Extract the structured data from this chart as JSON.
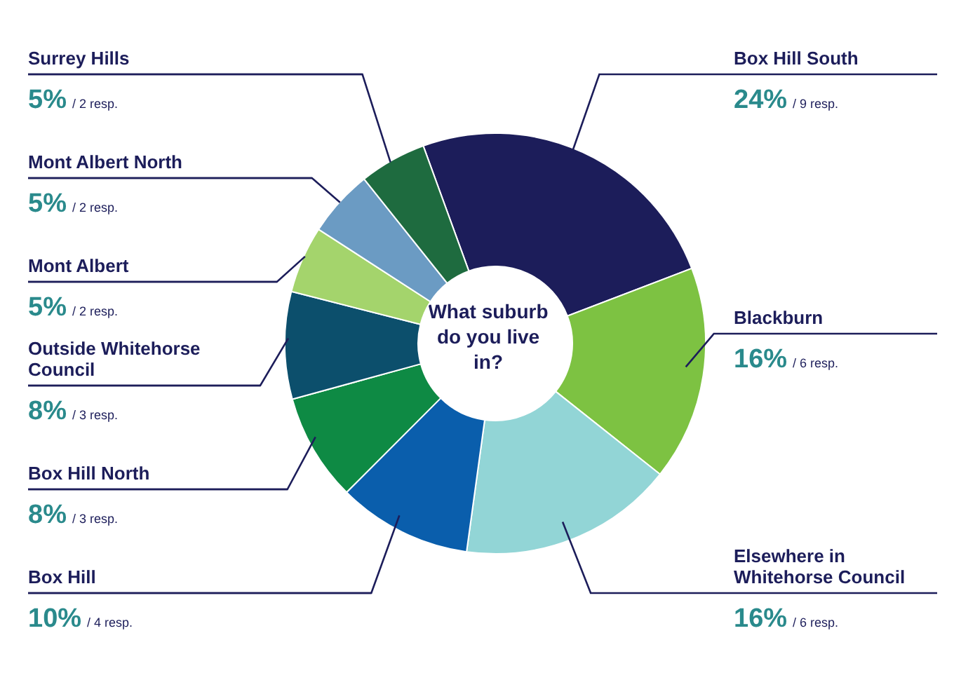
{
  "chart_data": {
    "type": "donut",
    "title": "What suburb do you live in?",
    "categories": [
      "Box Hill South",
      "Blackburn",
      "Elsewhere in Whitehorse Council",
      "Box Hill",
      "Box Hill North",
      "Outside Whitehorse Council",
      "Mont Albert",
      "Mont Albert North",
      "Surrey Hills"
    ],
    "values": [
      24,
      16,
      16,
      10,
      8,
      8,
      5,
      5,
      5
    ],
    "value_labels": [
      "24%",
      "16%",
      "16%",
      "10%",
      "8%",
      "8%",
      "5%",
      "5%",
      "5%"
    ],
    "colors": [
      "#1c1d5a",
      "#7dc242",
      "#92d5d6",
      "#0a5eac",
      "#0e8a44",
      "#0c4f6c",
      "#a4d46c",
      "#6b9bc3",
      "#1e6b3f"
    ],
    "annotations": [
      {
        "text": "/ 9 resp.",
        "x": "Box Hill South"
      },
      {
        "text": "/ 6 resp.",
        "x": "Blackburn"
      },
      {
        "text": "/ 6 resp.",
        "x": "Elsewhere in Whitehorse Council"
      },
      {
        "text": "/ 4 resp.",
        "x": "Box Hill"
      },
      {
        "text": "/ 3 resp.",
        "x": "Box Hill North"
      },
      {
        "text": "/ 3 resp.",
        "x": "Outside Whitehorse Council"
      },
      {
        "text": "/ 2 resp.",
        "x": "Mont Albert"
      },
      {
        "text": "/ 2 resp.",
        "x": "Mont Albert North"
      },
      {
        "text": "/ 2 resp.",
        "x": "Surrey Hills"
      }
    ]
  }
}
